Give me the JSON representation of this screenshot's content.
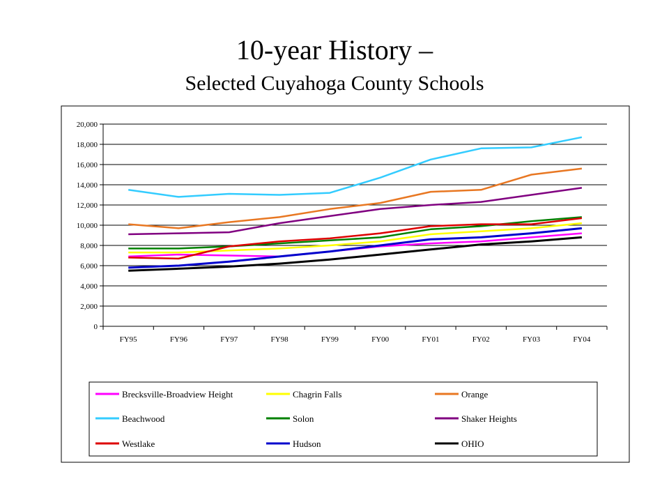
{
  "slide": {
    "title_line1": "10-year History –",
    "title_line2": "Selected Cuyahoga County Schools"
  },
  "chart_data": {
    "type": "line",
    "categories": [
      "FY95",
      "FY96",
      "FY97",
      "FY98",
      "FY99",
      "FY00",
      "FY01",
      "FY02",
      "FY03",
      "FY04"
    ],
    "ylim": [
      0,
      20000
    ],
    "yticks": [
      0,
      2000,
      4000,
      6000,
      8000,
      10000,
      12000,
      14000,
      16000,
      18000,
      20000
    ],
    "ytick_labels": [
      "0",
      "2,000",
      "4,000",
      "6,000",
      "8,000",
      "10,000",
      "12,000",
      "14,000",
      "16,000",
      "18,000",
      "20,000"
    ],
    "grid": true,
    "legend_position": "bottom",
    "series": [
      {
        "name": "Brecksville-Broadview Height",
        "color": "#ff00ff",
        "values": [
          6900,
          7100,
          7000,
          6900,
          7400,
          7900,
          8200,
          8400,
          8800,
          9200
        ]
      },
      {
        "name": "Chagrin Falls",
        "color": "#ffff00",
        "values": [
          7300,
          7300,
          7500,
          7700,
          8000,
          8400,
          9100,
          9400,
          9700,
          10200
        ]
      },
      {
        "name": "Orange",
        "color": "#e87722",
        "values": [
          10100,
          9700,
          10300,
          10800,
          11600,
          12200,
          13300,
          13500,
          15000,
          15600
        ]
      },
      {
        "name": "Beachwood",
        "color": "#33ccff",
        "values": [
          13500,
          12800,
          13100,
          13000,
          13200,
          14700,
          16500,
          17600,
          17700,
          18700
        ]
      },
      {
        "name": "Solon",
        "color": "#008000",
        "values": [
          7700,
          7700,
          7900,
          8200,
          8500,
          8800,
          9600,
          9900,
          10400,
          10800
        ]
      },
      {
        "name": "Shaker Heights",
        "color": "#800080",
        "values": [
          9100,
          9200,
          9300,
          10200,
          10900,
          11600,
          12000,
          12300,
          13000,
          13700
        ]
      },
      {
        "name": "Westlake",
        "color": "#dd0000",
        "values": [
          6800,
          6700,
          7900,
          8400,
          8700,
          9200,
          9900,
          10100,
          10100,
          10700
        ]
      },
      {
        "name": "Hudson",
        "color": "#0000cc",
        "values": [
          5800,
          6000,
          6400,
          6900,
          7400,
          8000,
          8600,
          8800,
          9200,
          9700
        ]
      },
      {
        "name": "OHIO",
        "color": "#000000",
        "values": [
          5500,
          5700,
          5900,
          6200,
          6600,
          7100,
          7600,
          8100,
          8400,
          8800
        ]
      }
    ]
  }
}
